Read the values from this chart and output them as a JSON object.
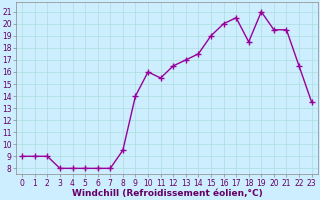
{
  "x": [
    0,
    1,
    2,
    3,
    4,
    5,
    6,
    7,
    8,
    9,
    10,
    11,
    12,
    13,
    14,
    15,
    16,
    17,
    18,
    19,
    20,
    21,
    22,
    23
  ],
  "y": [
    9,
    9,
    9,
    8,
    8,
    8,
    8,
    8,
    9.5,
    14,
    16,
    15.5,
    16.5,
    17,
    17.5,
    19,
    20,
    20.5,
    18.5,
    21,
    19.5,
    19.5,
    16.5,
    13.5
  ],
  "line_color": "#990099",
  "marker": "+",
  "marker_size": 4,
  "marker_lw": 1.0,
  "line_width": 1.0,
  "bg_color": "#cceeff",
  "grid_color": "#aadddd",
  "xlabel": "Windchill (Refroidissement éolien,°C)",
  "ylim_min": 7.5,
  "ylim_max": 21.8,
  "xlim_min": -0.5,
  "xlim_max": 23.5,
  "yticks": [
    8,
    9,
    10,
    11,
    12,
    13,
    14,
    15,
    16,
    17,
    18,
    19,
    20,
    21
  ],
  "xticks": [
    0,
    1,
    2,
    3,
    4,
    5,
    6,
    7,
    8,
    9,
    10,
    11,
    12,
    13,
    14,
    15,
    16,
    17,
    18,
    19,
    20,
    21,
    22,
    23
  ],
  "tick_fontsize": 5.5,
  "xlabel_fontsize": 6.5,
  "spine_color": "#888888",
  "tick_color": "#660066",
  "label_color": "#660066"
}
